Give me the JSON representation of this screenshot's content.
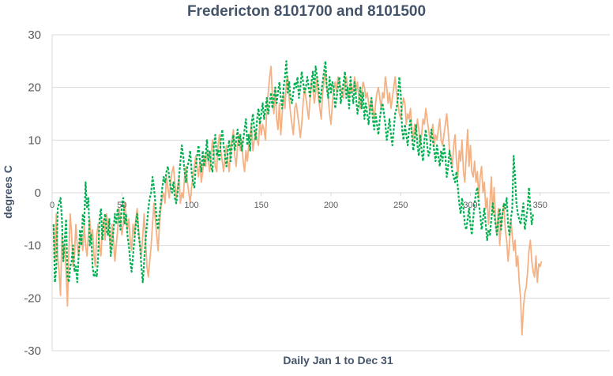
{
  "chart_data": {
    "type": "line",
    "title": "Fredericton 8101700 and 8101500",
    "xlabel": "Daily Jan 1 to Dec 31",
    "ylabel": "degrees C",
    "xlim": [
      0,
      400
    ],
    "ylim": [
      -30,
      30
    ],
    "x_ticks": [
      "0",
      "50",
      "100",
      "150",
      "200",
      "250",
      "300",
      "350"
    ],
    "y_ticks": [
      "30",
      "20",
      "10",
      "0",
      "-10",
      "-20",
      "-30"
    ],
    "grid": true,
    "legend": "none",
    "colors": {
      "series_1": "#f4b183",
      "series_2": "#00b050",
      "grid": "#d9d9d9",
      "axis": "#d9d9d9",
      "text": "#595959",
      "title": "#44546a"
    },
    "series": [
      {
        "style": "solid",
        "x_start": 1,
        "values": [
          -6,
          -13,
          -4,
          -12,
          -15,
          -19.5,
          -8,
          -12,
          -10,
          -15,
          -21.5,
          -11,
          -4,
          -8,
          -14,
          -12,
          -6,
          -10,
          -12,
          -9,
          -8,
          -11,
          -6,
          -10,
          -12,
          -8,
          -5,
          -9,
          -7,
          -12,
          -14,
          -8,
          -6,
          -10,
          -12,
          -7,
          -5,
          -9,
          -4,
          -6,
          -8,
          -11,
          -6,
          -9,
          -13,
          -10,
          -7,
          -3,
          -5,
          -8,
          -6,
          -2,
          -4,
          -7,
          -5,
          -9,
          -11,
          -6,
          -8,
          -5,
          -3,
          -7,
          -10,
          -12,
          -8,
          -4,
          -9,
          -14,
          -16,
          -13,
          -10,
          -6,
          -2,
          -5,
          -8,
          -11,
          -6,
          -3,
          -1,
          0,
          -2,
          3,
          1,
          -1,
          2,
          4,
          5,
          2,
          -1,
          1,
          3,
          -2,
          0,
          -1,
          3,
          5,
          2,
          0,
          -2,
          1,
          3,
          5,
          7,
          5,
          3,
          6,
          2,
          4,
          7,
          5,
          8,
          6,
          4,
          7,
          10,
          8,
          5,
          4,
          9,
          11,
          8,
          6,
          4,
          7,
          9,
          6,
          4,
          8,
          10,
          12,
          7,
          5,
          9,
          11,
          8,
          10,
          6,
          4,
          8,
          6,
          9,
          11,
          13,
          8,
          10,
          12,
          10,
          9,
          14,
          11,
          13,
          12,
          10,
          16,
          19,
          22,
          24,
          18,
          15,
          20,
          14,
          12,
          17,
          11,
          15,
          19,
          16,
          21,
          22,
          18,
          15,
          13,
          11,
          16,
          17,
          15,
          13,
          10.5,
          13,
          17,
          20,
          18,
          16,
          14,
          18,
          21,
          20,
          17,
          19,
          22,
          18,
          16,
          14,
          19,
          21,
          23,
          20,
          18,
          15,
          13,
          17,
          20,
          21,
          19,
          22,
          21,
          20,
          19,
          18,
          21,
          22,
          20,
          18,
          21,
          19,
          20,
          22,
          19,
          21,
          18,
          16,
          19,
          21,
          20,
          18,
          19,
          17,
          15,
          18,
          16,
          14,
          17,
          19,
          20,
          18,
          16,
          19,
          18,
          22,
          20,
          17,
          19,
          16,
          18,
          20,
          22,
          19,
          17,
          15,
          14,
          16,
          18,
          17,
          13,
          15,
          14,
          16,
          12,
          10,
          13,
          11,
          14,
          12,
          9,
          11,
          14,
          13,
          16,
          14,
          12,
          10,
          11,
          13,
          9,
          11,
          10,
          12,
          14,
          10,
          9,
          11,
          13,
          15,
          12,
          8,
          7,
          5,
          9,
          11,
          6,
          3,
          8,
          6,
          10,
          4,
          2,
          7,
          12,
          5,
          9,
          4,
          3,
          6,
          2,
          4,
          -1,
          3,
          5,
          0,
          2,
          -3,
          -1,
          -6,
          -2,
          3,
          -4,
          1,
          -5,
          -8,
          -3,
          -10,
          -6,
          -4,
          -2,
          -7,
          -9,
          -13,
          -10,
          -5,
          -8,
          -11,
          -9,
          -14,
          -12,
          -17,
          -20,
          -27,
          -22,
          -19,
          -18,
          -15,
          -11,
          -9,
          -13,
          -15,
          -16,
          -12,
          -17,
          -13.5,
          -14,
          -13
        ]
      },
      {
        "style": "dashed",
        "x_start": 1,
        "values": [
          -6,
          -17,
          -14,
          -3,
          -2,
          -1,
          -5,
          -13,
          -9,
          -5,
          -16,
          -17,
          -14,
          -13,
          -10,
          -15,
          -14,
          -17,
          -12,
          -7,
          -10,
          -4,
          -6,
          2,
          -3,
          -1,
          -10,
          -8,
          -14,
          -16,
          -15,
          -16,
          -12,
          -5,
          -3,
          -9,
          -6,
          -4,
          -7,
          -8,
          -5,
          -12,
          -10,
          -7,
          -4,
          -6,
          -3,
          -5,
          -7,
          -2,
          -1,
          -6,
          -4,
          -8,
          -10,
          -13,
          -15,
          -12,
          -9,
          -6,
          -4,
          -8,
          -10,
          -14,
          -17,
          -13,
          -9,
          -6,
          -3,
          -1,
          0,
          3,
          1,
          -2,
          -5,
          -7,
          -4,
          -2,
          1,
          3,
          2,
          4,
          5,
          3,
          1,
          0,
          2,
          -1,
          -2,
          0,
          3,
          6,
          9,
          7,
          4,
          2,
          5,
          6,
          8,
          4,
          2,
          1,
          5,
          7,
          9,
          6,
          4,
          8,
          5,
          7,
          10,
          6,
          8,
          5,
          4,
          9,
          11,
          7,
          8,
          6,
          10,
          12,
          9,
          7,
          5,
          8,
          10,
          6,
          9,
          11,
          8,
          10,
          12,
          9,
          11,
          8,
          10,
          12,
          14,
          9,
          11,
          8,
          13,
          15,
          12,
          10,
          14,
          16,
          13,
          15,
          17,
          14,
          16,
          18,
          15,
          17,
          19,
          16,
          18,
          20,
          17,
          19,
          21,
          18,
          16,
          20,
          22,
          25,
          19,
          21,
          18,
          17,
          19,
          21,
          20,
          22,
          18,
          20,
          23,
          21,
          19,
          20,
          22,
          20,
          18,
          21,
          23,
          19,
          24,
          22,
          20,
          17,
          19,
          21,
          23,
          25,
          20,
          18,
          22,
          19,
          21,
          20,
          16,
          18,
          20,
          22,
          17,
          19,
          21,
          23,
          18,
          20,
          16,
          22,
          19,
          17,
          21,
          18,
          15,
          17,
          20,
          16,
          19,
          14,
          17,
          15,
          13,
          16,
          18,
          14,
          12,
          15,
          13,
          11,
          14,
          16,
          17,
          15,
          13,
          10,
          12,
          14,
          11,
          9,
          12,
          15,
          16,
          18,
          22,
          19,
          12,
          10,
          13,
          11,
          9,
          12,
          14,
          11,
          8,
          10,
          13,
          9,
          7,
          11,
          8,
          6,
          10,
          12,
          9,
          7,
          8,
          12,
          10,
          8,
          6,
          9,
          7,
          5,
          8,
          6,
          9,
          7,
          3,
          5,
          8,
          6,
          4,
          3,
          2,
          4,
          1,
          -2,
          -4,
          -1,
          -3,
          -6,
          -7,
          -5,
          -3,
          -6,
          -8,
          -5,
          -2,
          0,
          1,
          -2,
          -4,
          -7,
          -5,
          -3,
          -6,
          -9,
          -7,
          -8,
          -5,
          -2,
          -4,
          -6,
          -8,
          -5,
          -3,
          -7,
          -4,
          -2,
          -3,
          -1,
          -6,
          -8,
          -5,
          -3,
          7,
          3,
          -2,
          -4,
          -5,
          -6,
          -4,
          -2,
          -7,
          -5,
          -3,
          1,
          -3,
          -6,
          -4
        ]
      }
    ]
  }
}
